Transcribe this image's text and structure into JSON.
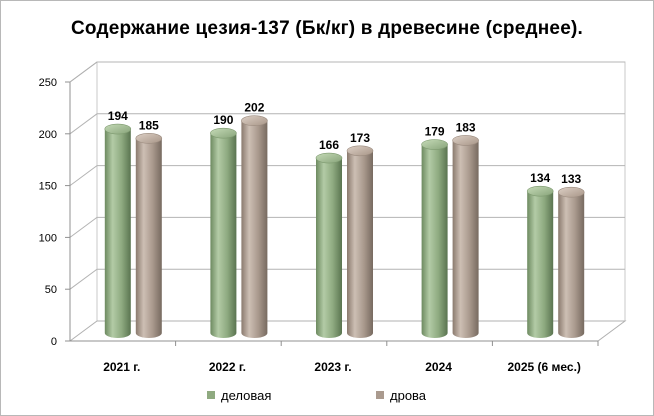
{
  "chart_data": {
    "type": "bar",
    "title": "Содержание цезия-137 (Бк/кг) в древесине (среднее).",
    "categories": [
      "2021 г.",
      "2022 г.",
      "2023 г.",
      "2024",
      "2025 (6 мес.)"
    ],
    "series": [
      {
        "name": "деловая",
        "values": [
          194,
          190,
          166,
          179,
          134
        ],
        "color": "#8faa80"
      },
      {
        "name": "дрова",
        "values": [
          185,
          202,
          173,
          183,
          133
        ],
        "color": "#aa9a8e"
      }
    ],
    "ylim": [
      0,
      250
    ],
    "yticks": [
      0,
      50,
      100,
      150,
      200,
      250
    ],
    "grid": true,
    "legend_position": "bottom",
    "style": "3d-cylinder"
  }
}
